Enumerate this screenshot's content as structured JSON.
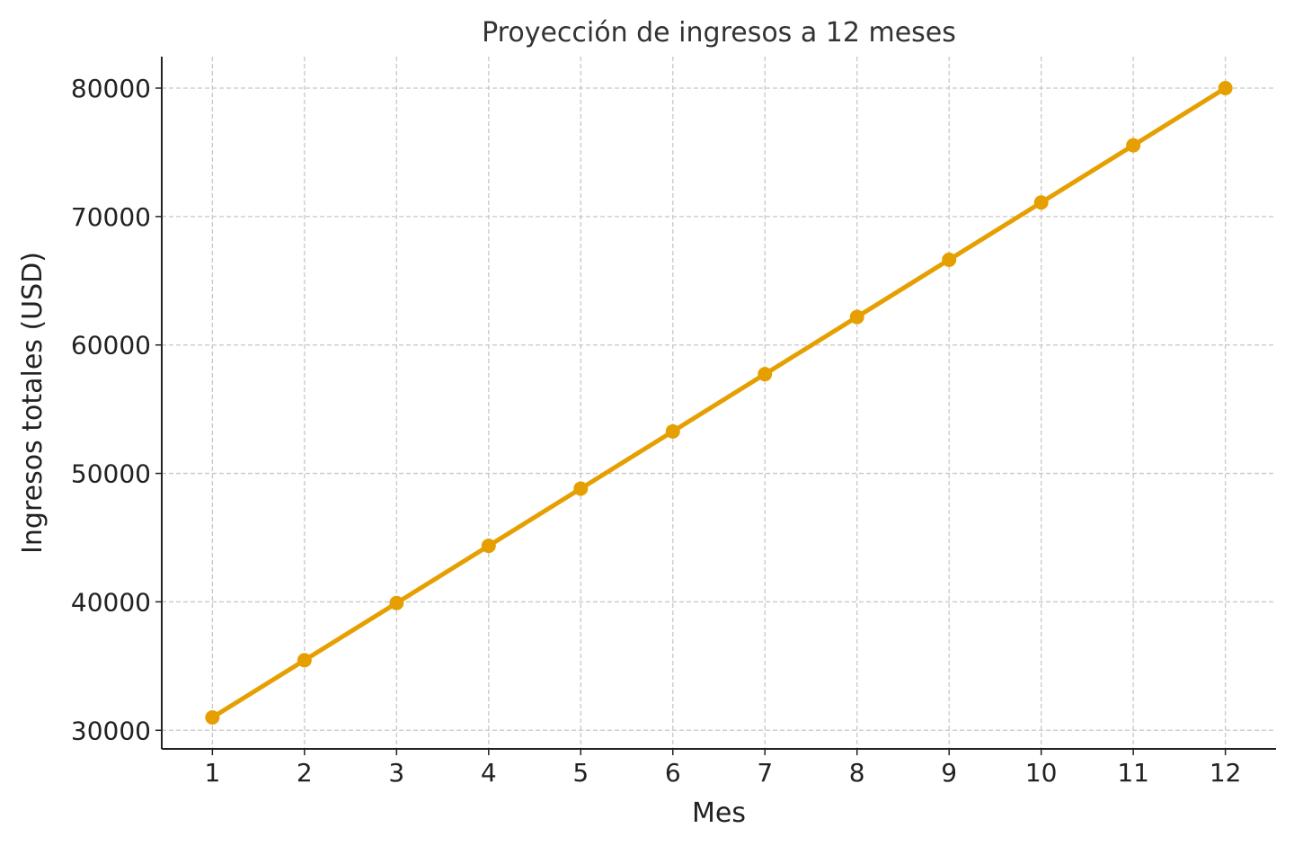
{
  "chart_data": {
    "type": "line",
    "title": "Proyección de ingresos a 12 meses",
    "xlabel": "Mes",
    "ylabel": "Ingresos totales (USD)",
    "x": [
      1,
      2,
      3,
      4,
      5,
      6,
      7,
      8,
      9,
      10,
      11,
      12
    ],
    "series": [
      {
        "values": [
          31000,
          35455,
          39909,
          44364,
          48818,
          53273,
          57727,
          62182,
          66636,
          71091,
          75545,
          80000
        ],
        "color": "#E69F00",
        "marker": "circle"
      }
    ],
    "xticks": [
      "1",
      "2",
      "3",
      "4",
      "5",
      "6",
      "7",
      "8",
      "9",
      "10",
      "11",
      "12"
    ],
    "yticks": [
      "30000",
      "40000",
      "50000",
      "60000",
      "70000",
      "80000"
    ],
    "xlim": [
      0.45,
      12.55
    ],
    "ylim": [
      28550,
      82450
    ],
    "grid": true
  }
}
